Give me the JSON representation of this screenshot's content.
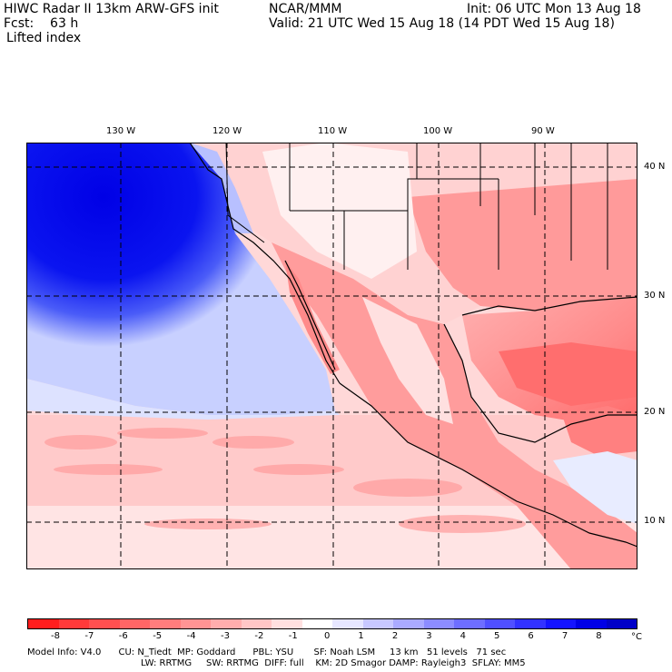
{
  "header": {
    "title": "HIWC Radar II 13km ARW-GFS init",
    "org": "NCAR/MMM",
    "init": "Init: 06 UTC Mon 13 Aug 18",
    "fcst": "Fcst:    63 h",
    "valid": "Valid: 21 UTC Wed 15 Aug 18 (14 PDT Wed 15 Aug 18)",
    "field": "Lifted index"
  },
  "axes": {
    "lon_labels": [
      "130 W",
      "120 W",
      "110 W",
      "100 W",
      "90 W"
    ],
    "lat_labels": [
      "40 N",
      "30 N",
      "20 N",
      "10 N"
    ]
  },
  "colorbar": {
    "ticks": [
      "-8",
      "-7",
      "-6",
      "-5",
      "-4",
      "-3",
      "-2",
      "-1",
      "0",
      "1",
      "2",
      "3",
      "4",
      "5",
      "6",
      "7",
      "8"
    ],
    "unit": "°C",
    "colors": [
      "#ff1e1e",
      "#ff3a3a",
      "#ff5050",
      "#ff6666",
      "#ff7d7d",
      "#ff9494",
      "#ffadad",
      "#ffc6c6",
      "#ffe0e0",
      "#ffffff",
      "#e6e6ff",
      "#c8c8ff",
      "#aaaaff",
      "#8c8cff",
      "#6e6eff",
      "#5050ff",
      "#3232ff",
      "#1414ff",
      "#0000e6",
      "#0000c8"
    ]
  },
  "footer": {
    "line1": "Model Info: V4.0      CU: N_Tiedt  MP: Goddard      PBL: YSU       SF: Noah LSM     13 km   51 levels   71 sec",
    "line2": "LW: RRTMG     SW: RRTMG  DIFF: full    KM: 2D Smagor DAMP: Rayleigh3  SFLAY: MM5"
  }
}
